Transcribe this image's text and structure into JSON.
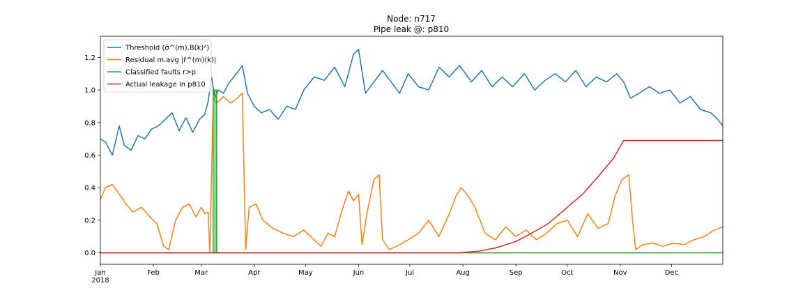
{
  "chart_data": {
    "type": "line",
    "title": "Node: n717",
    "subtitle": "Pipe leak @: p810",
    "xlabel": "",
    "ylabel": "",
    "x_range": [
      "2018-01-01",
      "2018-12-31"
    ],
    "ylim": [
      -0.07,
      1.33
    ],
    "y_ticks": [
      0.0,
      0.2,
      0.4,
      0.6,
      0.8,
      1.0,
      1.2
    ],
    "y_tick_labels": [
      "0.0",
      "0.2",
      "0.4",
      "0.6",
      "0.8",
      "1.0",
      "1.2"
    ],
    "x_ticks": [
      "2018-01-01",
      "2018-02-01",
      "2018-03-01",
      "2018-04-01",
      "2018-05-01",
      "2018-06-01",
      "2018-07-01",
      "2018-08-01",
      "2018-09-01",
      "2018-10-01",
      "2018-11-01",
      "2018-12-01"
    ],
    "x_tick_labels": [
      "Jan",
      "Feb",
      "Mar",
      "Apr",
      "May",
      "Jun",
      "Jul",
      "Aug",
      "Sep",
      "Oct",
      "Nov",
      "Dec"
    ],
    "x_year_label": "2018",
    "legend_position": "upper-left",
    "grid": false,
    "series": [
      {
        "name": "Threshold (σ̄^(m),B(k)²)",
        "color": "#1f77b4",
        "x": [
          "2018-01-01",
          "2018-01-04",
          "2018-01-08",
          "2018-01-12",
          "2018-01-15",
          "2018-01-19",
          "2018-01-23",
          "2018-01-27",
          "2018-01-31",
          "2018-02-04",
          "2018-02-08",
          "2018-02-12",
          "2018-02-16",
          "2018-02-20",
          "2018-02-24",
          "2018-02-28",
          "2018-03-03",
          "2018-03-05",
          "2018-03-07",
          "2018-03-09",
          "2018-03-11",
          "2018-03-14",
          "2018-03-17",
          "2018-03-20",
          "2018-03-23",
          "2018-03-25",
          "2018-03-28",
          "2018-04-01",
          "2018-04-05",
          "2018-04-10",
          "2018-04-15",
          "2018-04-20",
          "2018-04-25",
          "2018-04-30",
          "2018-05-06",
          "2018-05-12",
          "2018-05-18",
          "2018-05-24",
          "2018-05-29",
          "2018-06-01",
          "2018-06-05",
          "2018-06-10",
          "2018-06-15",
          "2018-06-20",
          "2018-06-25",
          "2018-06-30",
          "2018-07-06",
          "2018-07-12",
          "2018-07-18",
          "2018-07-24",
          "2018-07-30",
          "2018-08-06",
          "2018-08-12",
          "2018-08-18",
          "2018-08-24",
          "2018-08-30",
          "2018-09-06",
          "2018-09-12",
          "2018-09-18",
          "2018-09-24",
          "2018-09-30",
          "2018-10-06",
          "2018-10-12",
          "2018-10-18",
          "2018-10-24",
          "2018-10-30",
          "2018-11-03",
          "2018-11-07",
          "2018-11-12",
          "2018-11-18",
          "2018-11-24",
          "2018-11-30",
          "2018-12-06",
          "2018-12-12",
          "2018-12-18",
          "2018-12-24",
          "2018-12-28",
          "2018-12-31"
        ],
        "values": [
          0.7,
          0.68,
          0.6,
          0.78,
          0.66,
          0.63,
          0.72,
          0.7,
          0.76,
          0.78,
          0.82,
          0.86,
          0.75,
          0.83,
          0.74,
          0.82,
          0.85,
          0.93,
          1.08,
          0.95,
          1.0,
          0.98,
          1.04,
          1.08,
          1.12,
          1.15,
          0.98,
          0.9,
          0.86,
          0.88,
          0.82,
          0.9,
          0.88,
          1.0,
          1.08,
          1.06,
          1.14,
          1.02,
          1.22,
          1.25,
          0.98,
          1.05,
          1.12,
          1.05,
          0.98,
          1.1,
          1.02,
          1.0,
          1.14,
          1.08,
          1.15,
          1.05,
          1.12,
          1.02,
          1.08,
          1.02,
          1.1,
          1.0,
          1.06,
          1.1,
          1.05,
          1.12,
          1.02,
          1.08,
          1.05,
          1.1,
          1.05,
          0.95,
          0.98,
          1.02,
          0.98,
          1.0,
          0.92,
          0.96,
          0.88,
          0.86,
          0.82,
          0.78
        ]
      },
      {
        "name": "Residual m.avg |r̂^(m)(k)|",
        "color": "#ff7f0e",
        "x": [
          "2018-01-01",
          "2018-01-04",
          "2018-01-08",
          "2018-01-12",
          "2018-01-16",
          "2018-01-20",
          "2018-01-25",
          "2018-01-30",
          "2018-02-03",
          "2018-02-07",
          "2018-02-10",
          "2018-02-14",
          "2018-02-18",
          "2018-02-22",
          "2018-02-26",
          "2018-03-01",
          "2018-03-03",
          "2018-03-05",
          "2018-03-06",
          "2018-03-08",
          "2018-03-10",
          "2018-03-14",
          "2018-03-18",
          "2018-03-22",
          "2018-03-24",
          "2018-03-25",
          "2018-03-27",
          "2018-03-29",
          "2018-04-02",
          "2018-04-06",
          "2018-04-12",
          "2018-04-18",
          "2018-04-24",
          "2018-04-30",
          "2018-05-06",
          "2018-05-10",
          "2018-05-14",
          "2018-05-18",
          "2018-05-22",
          "2018-05-26",
          "2018-05-29",
          "2018-06-01",
          "2018-06-03",
          "2018-06-06",
          "2018-06-10",
          "2018-06-13",
          "2018-06-15",
          "2018-06-19",
          "2018-06-25",
          "2018-06-30",
          "2018-07-06",
          "2018-07-12",
          "2018-07-18",
          "2018-07-24",
          "2018-07-28",
          "2018-07-31",
          "2018-08-04",
          "2018-08-08",
          "2018-08-14",
          "2018-08-20",
          "2018-08-26",
          "2018-09-01",
          "2018-09-07",
          "2018-09-13",
          "2018-09-19",
          "2018-09-25",
          "2018-10-01",
          "2018-10-07",
          "2018-10-13",
          "2018-10-19",
          "2018-10-25",
          "2018-10-29",
          "2018-11-02",
          "2018-11-06",
          "2018-11-08",
          "2018-11-10",
          "2018-11-14",
          "2018-11-20",
          "2018-11-26",
          "2018-12-02",
          "2018-12-08",
          "2018-12-14",
          "2018-12-20",
          "2018-12-26",
          "2018-12-31"
        ],
        "values": [
          0.33,
          0.4,
          0.42,
          0.36,
          0.3,
          0.25,
          0.28,
          0.22,
          0.18,
          0.04,
          0.02,
          0.2,
          0.28,
          0.3,
          0.22,
          0.28,
          0.24,
          0.25,
          0.0,
          0.95,
          0.92,
          0.96,
          0.92,
          0.95,
          0.97,
          0.98,
          0.02,
          0.28,
          0.3,
          0.2,
          0.15,
          0.12,
          0.1,
          0.14,
          0.08,
          0.04,
          0.12,
          0.1,
          0.25,
          0.38,
          0.32,
          0.36,
          0.05,
          0.25,
          0.45,
          0.48,
          0.08,
          0.02,
          0.05,
          0.08,
          0.12,
          0.2,
          0.1,
          0.24,
          0.35,
          0.4,
          0.35,
          0.28,
          0.12,
          0.08,
          0.16,
          0.1,
          0.14,
          0.08,
          0.12,
          0.18,
          0.2,
          0.1,
          0.24,
          0.15,
          0.18,
          0.35,
          0.45,
          0.48,
          0.22,
          0.02,
          0.05,
          0.06,
          0.04,
          0.06,
          0.05,
          0.08,
          0.1,
          0.14,
          0.16
        ]
      },
      {
        "name": "Classified faults r>p",
        "color": "#2ca02c",
        "x": [
          "2018-01-01",
          "2018-03-08",
          "2018-03-08",
          "2018-03-08",
          "2018-03-09",
          "2018-03-09",
          "2018-03-10",
          "2018-03-10",
          "2018-03-11",
          "2018-03-11",
          "2018-12-31"
        ],
        "values": [
          0,
          0,
          1,
          0,
          0,
          1,
          1,
          0,
          0,
          0,
          0
        ]
      },
      {
        "name": "Actual leakage in p810",
        "color": "#d62728",
        "x": [
          "2018-01-01",
          "2018-07-29",
          "2018-08-10",
          "2018-08-20",
          "2018-09-01",
          "2018-09-10",
          "2018-09-20",
          "2018-10-01",
          "2018-10-10",
          "2018-10-20",
          "2018-10-28",
          "2018-11-03",
          "2018-12-31"
        ],
        "values": [
          0,
          0,
          0.01,
          0.03,
          0.07,
          0.12,
          0.18,
          0.28,
          0.36,
          0.48,
          0.58,
          0.69,
          0.69
        ]
      }
    ]
  }
}
